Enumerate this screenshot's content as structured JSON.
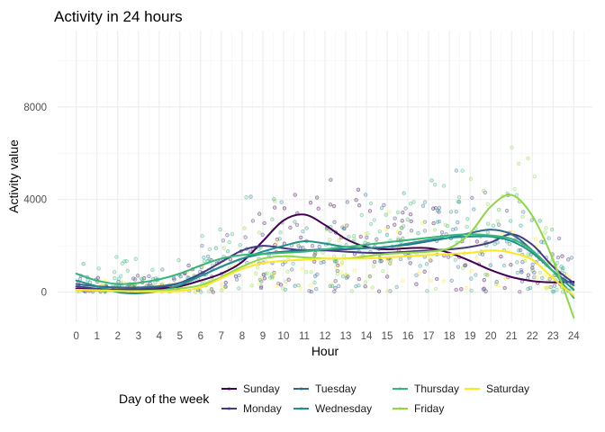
{
  "chart_data": {
    "type": "scatter",
    "title": "Activity in 24 hours",
    "xlabel": "Hour",
    "ylabel": "Activity value",
    "xlim": [
      -0.9,
      24.9
    ],
    "ylim": [
      -1300,
      11300
    ],
    "x_ticks": [
      "0",
      "1",
      "2",
      "3",
      "4",
      "5",
      "6",
      "7",
      "8",
      "9",
      "10",
      "11",
      "12",
      "13",
      "14",
      "15",
      "16",
      "17",
      "18",
      "19",
      "20",
      "21",
      "22",
      "23",
      "24"
    ],
    "y_ticks": [
      "0",
      "4000",
      "8000"
    ],
    "grid": true,
    "legend": {
      "title": "Day of the week",
      "placement": "bottom",
      "ncol": 4
    },
    "series": [
      {
        "name": "Sunday",
        "color": "#440154",
        "smooth_x": [
          0,
          1,
          2,
          3,
          4,
          5,
          6,
          7,
          8,
          9,
          10,
          11,
          12,
          13,
          14,
          15,
          16,
          17,
          18,
          19,
          20,
          21,
          22,
          23,
          24
        ],
        "smooth_y": [
          150,
          120,
          110,
          120,
          150,
          250,
          500,
          800,
          1300,
          2200,
          3100,
          3350,
          2900,
          2300,
          1950,
          1850,
          1900,
          1900,
          1700,
          1350,
          950,
          650,
          480,
          420,
          450
        ]
      },
      {
        "name": "Monday",
        "color": "#443983",
        "smooth_x": [
          0,
          1,
          2,
          3,
          4,
          5,
          6,
          7,
          8,
          9,
          10,
          11,
          12,
          13,
          14,
          15,
          16,
          17,
          18,
          19,
          20,
          21,
          22,
          23,
          24
        ],
        "smooth_y": [
          250,
          150,
          100,
          120,
          200,
          400,
          800,
          1300,
          1800,
          2000,
          1900,
          1800,
          1800,
          1750,
          1700,
          1700,
          1750,
          1800,
          1850,
          1950,
          2150,
          2500,
          2050,
          1100,
          400
        ]
      },
      {
        "name": "Tuesday",
        "color": "#31688e",
        "smooth_x": [
          0,
          1,
          2,
          3,
          4,
          5,
          6,
          7,
          8,
          9,
          10,
          11,
          12,
          13,
          14,
          15,
          16,
          17,
          18,
          19,
          20,
          21,
          22,
          23,
          24
        ],
        "smooth_y": [
          350,
          250,
          200,
          200,
          250,
          400,
          700,
          1100,
          1450,
          1650,
          1750,
          1800,
          1850,
          1850,
          1900,
          1950,
          2050,
          2200,
          2350,
          2550,
          2700,
          2500,
          1800,
          900,
          300
        ]
      },
      {
        "name": "Wednesday",
        "color": "#21918c",
        "smooth_x": [
          0,
          1,
          2,
          3,
          4,
          5,
          6,
          7,
          8,
          9,
          10,
          11,
          12,
          13,
          14,
          15,
          16,
          17,
          18,
          19,
          20,
          21,
          22,
          23,
          24
        ],
        "smooth_y": [
          500,
          250,
          0,
          -50,
          50,
          300,
          700,
          1100,
          1450,
          1750,
          2000,
          2200,
          2100,
          1950,
          1900,
          1950,
          2100,
          2250,
          2350,
          2400,
          2400,
          2200,
          1700,
          900,
          100
        ]
      },
      {
        "name": "Thursday",
        "color": "#35b779",
        "smooth_x": [
          0,
          1,
          2,
          3,
          4,
          5,
          6,
          7,
          8,
          9,
          10,
          11,
          12,
          13,
          14,
          15,
          16,
          17,
          18,
          19,
          20,
          21,
          22,
          23,
          24
        ],
        "smooth_y": [
          800,
          500,
          350,
          400,
          550,
          800,
          1150,
          1450,
          1600,
          1650,
          1700,
          1750,
          1850,
          1950,
          2050,
          2150,
          2250,
          2350,
          2450,
          2500,
          2450,
          2300,
          1800,
          900,
          -250
        ]
      },
      {
        "name": "Friday",
        "color": "#8fd744",
        "smooth_x": [
          0,
          1,
          2,
          3,
          4,
          5,
          6,
          7,
          8,
          9,
          10,
          11,
          12,
          13,
          14,
          15,
          16,
          17,
          18,
          19,
          20,
          21,
          22,
          23,
          24
        ],
        "smooth_y": [
          100,
          50,
          50,
          50,
          80,
          150,
          300,
          650,
          1100,
          1450,
          1550,
          1500,
          1450,
          1450,
          1550,
          1650,
          1700,
          1750,
          1900,
          2550,
          3700,
          4200,
          3300,
          1400,
          -1100
        ]
      },
      {
        "name": "Saturday",
        "color": "#fde725",
        "smooth_x": [
          0,
          1,
          2,
          3,
          4,
          5,
          6,
          7,
          8,
          9,
          10,
          11,
          12,
          13,
          14,
          15,
          16,
          17,
          18,
          19,
          20,
          21,
          22,
          23,
          24
        ],
        "smooth_y": [
          100,
          80,
          50,
          30,
          30,
          50,
          200,
          600,
          1000,
          1250,
          1350,
          1400,
          1450,
          1450,
          1450,
          1500,
          1550,
          1600,
          1650,
          1700,
          1800,
          1700,
          1400,
          600,
          -150
        ]
      }
    ]
  }
}
